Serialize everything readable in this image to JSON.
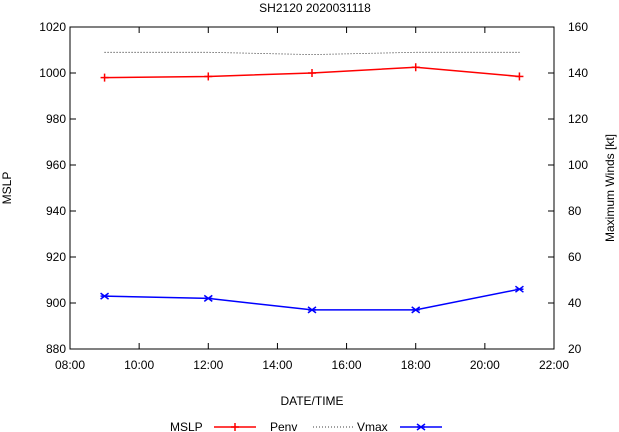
{
  "chart_data": {
    "type": "line",
    "title": "SH2120 2020031118",
    "xlabel": "DATE/TIME",
    "ylabel": "MSLP",
    "y2label": "Maximum Winds [kt]",
    "x_hours": [
      9,
      12,
      15,
      18,
      21
    ],
    "xlim": [
      8,
      22
    ],
    "ylim": [
      880,
      1020
    ],
    "y2lim": [
      20,
      160
    ],
    "x_ticks": [
      "08:00",
      "10:00",
      "12:00",
      "14:00",
      "16:00",
      "18:00",
      "20:00",
      "22:00"
    ],
    "x_tick_hours": [
      8,
      10,
      12,
      14,
      16,
      18,
      20,
      22
    ],
    "y_ticks": [
      "880",
      "900",
      "920",
      "940",
      "960",
      "980",
      "1000",
      "1020"
    ],
    "y2_ticks": [
      "20",
      "40",
      "60",
      "80",
      "100",
      "120",
      "140",
      "160"
    ],
    "series": [
      {
        "name": "MSLP",
        "axis": "left",
        "color": "#ff0000",
        "style": "solid-plus",
        "values": [
          998,
          998.5,
          1000,
          1002.5,
          998.5
        ]
      },
      {
        "name": "Penv",
        "axis": "left",
        "color": "#000000",
        "style": "dotted",
        "values": [
          1009,
          1009,
          1008,
          1009,
          1009
        ]
      },
      {
        "name": "Vmax",
        "axis": "right",
        "color": "#0000ff",
        "style": "solid-star",
        "values": [
          43,
          42,
          37,
          37,
          46
        ]
      }
    ],
    "legend": {
      "position": "bottom",
      "labels": [
        "MSLP",
        "Penv",
        "Vmax"
      ]
    }
  }
}
